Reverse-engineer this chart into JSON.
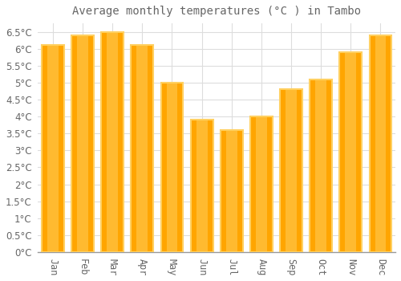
{
  "title": "Average monthly temperatures (°C ) in Tambo",
  "months": [
    "Jan",
    "Feb",
    "Mar",
    "Apr",
    "May",
    "Jun",
    "Jul",
    "Aug",
    "Sep",
    "Oct",
    "Nov",
    "Dec"
  ],
  "values": [
    6.1,
    6.4,
    6.5,
    6.1,
    5.0,
    3.9,
    3.6,
    4.0,
    4.8,
    5.1,
    5.9,
    6.4
  ],
  "bar_color_main": "#FFA500",
  "bar_color_light": "#FFD060",
  "background_color": "#FFFFFF",
  "plot_bg_color": "#FFFFFF",
  "grid_color": "#DDDDDD",
  "text_color": "#666666",
  "ylim": [
    0,
    6.75
  ],
  "ytick_step": 0.5,
  "ytick_max": 6.5,
  "title_fontsize": 10,
  "tick_fontsize": 8.5,
  "bar_width": 0.75
}
